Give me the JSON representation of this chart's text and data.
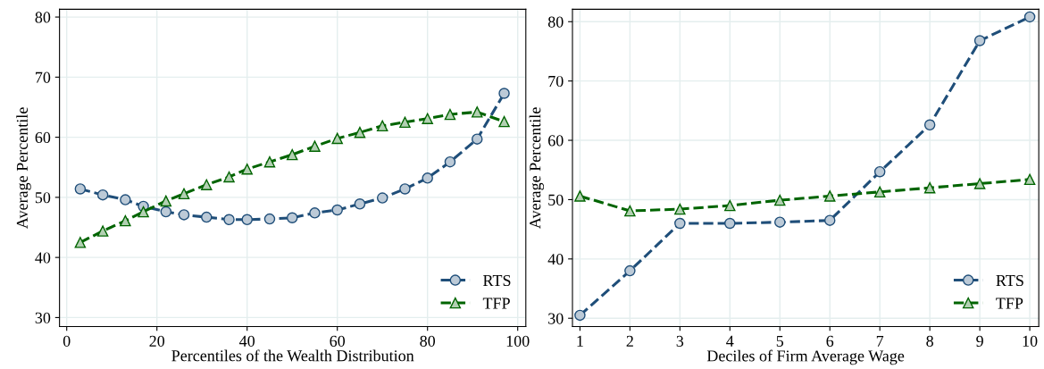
{
  "chart_data": [
    {
      "type": "line",
      "xlabel": "Percentiles of the Wealth Distribution",
      "ylabel": "Average Percentile",
      "x": [
        3,
        8,
        13,
        17,
        22,
        26,
        31,
        36,
        40,
        45,
        50,
        55,
        60,
        65,
        70,
        75,
        80,
        85,
        91,
        97
      ],
      "series": [
        {
          "name": "RTS",
          "color": "#1f4e79",
          "marker": "circle",
          "values": [
            51.4,
            50.4,
            49.6,
            48.5,
            47.6,
            47.1,
            46.7,
            46.3,
            46.3,
            46.4,
            46.6,
            47.4,
            47.9,
            48.9,
            49.9,
            51.4,
            53.2,
            55.9,
            59.7,
            67.3
          ]
        },
        {
          "name": "TFP",
          "color": "#006400",
          "marker": "triangle",
          "values": [
            42.5,
            44.4,
            46.1,
            47.6,
            49.4,
            50.6,
            52.1,
            53.4,
            54.7,
            55.9,
            57.1,
            58.5,
            59.8,
            60.8,
            61.9,
            62.5,
            63.1,
            63.8,
            64.2,
            62.6
          ]
        }
      ],
      "xlim": [
        -1.6,
        101.8
      ],
      "xticks": [
        0,
        20,
        40,
        60,
        80,
        100
      ],
      "ylim": [
        28.5,
        81.3
      ],
      "yticks": [
        30,
        40,
        50,
        60,
        70,
        80
      ],
      "grid": true,
      "legend": "bottom right",
      "line_style": "dashed"
    },
    {
      "type": "line",
      "xlabel": "Deciles of Firm Average Wage",
      "ylabel": "Average Percentile",
      "x": [
        1,
        2,
        3,
        4,
        5,
        6,
        7,
        8,
        9,
        10
      ],
      "series": [
        {
          "name": "RTS",
          "color": "#1f4e79",
          "marker": "circle",
          "values": [
            30.5,
            38.0,
            46.0,
            46.0,
            46.2,
            46.5,
            54.7,
            62.6,
            76.8,
            80.8
          ]
        },
        {
          "name": "TFP",
          "color": "#006400",
          "marker": "triangle",
          "values": [
            50.6,
            48.1,
            48.4,
            49.0,
            49.9,
            50.6,
            51.3,
            52.0,
            52.7,
            53.4
          ]
        }
      ],
      "xlim": [
        0.85,
        10.18
      ],
      "xticks": [
        1,
        2,
        3,
        4,
        5,
        6,
        7,
        8,
        9,
        10
      ],
      "ylim": [
        28.6,
        82.1
      ],
      "yticks": [
        30,
        40,
        50,
        60,
        70,
        80
      ],
      "grid": true,
      "legend": "bottom right",
      "line_style": "dashed"
    }
  ]
}
